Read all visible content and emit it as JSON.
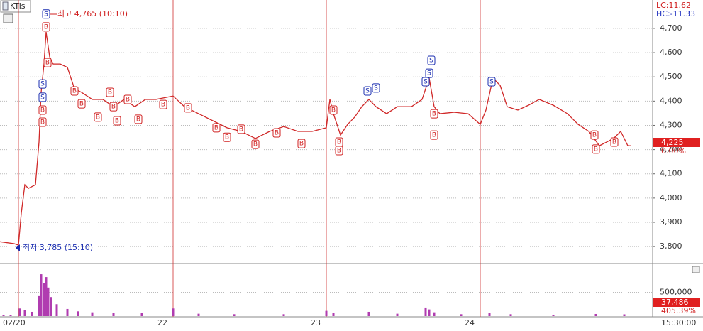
{
  "chart_data": {
    "type": "line",
    "symbol": "KTis",
    "lc": "LC:11.62",
    "hc": "HC:-11.33",
    "high_label": "최고 4,765 (10:10)",
    "low_label": "최저 3,785 (15:10)",
    "last_price": "4,225",
    "last_change": "0.00%",
    "last_volume": "37,486",
    "volume_ratio": "405.39%",
    "end_time": "15:30:00",
    "xlim": [
      0,
      920
    ],
    "xticks": [
      {
        "value": 26,
        "label": "02/20"
      },
      {
        "value": 244,
        "label": "22"
      },
      {
        "value": 460,
        "label": "23"
      },
      {
        "value": 677,
        "label": "24"
      }
    ],
    "ylim": [
      3733,
      4817
    ],
    "yticks": [
      {
        "value": 3800,
        "label": "3,800"
      },
      {
        "value": 3900,
        "label": "3,900"
      },
      {
        "value": 4000,
        "label": "4,000"
      },
      {
        "value": 4100,
        "label": "4,100"
      },
      {
        "value": 4200,
        "label": "4,200"
      },
      {
        "value": 4300,
        "label": "4,300"
      },
      {
        "value": 4400,
        "label": "4,400"
      },
      {
        "value": 4500,
        "label": "4,500"
      },
      {
        "value": 4600,
        "label": "4,600"
      },
      {
        "value": 4700,
        "label": "4,700"
      }
    ],
    "price": {
      "color": "#d02828",
      "x": [
        0,
        20,
        26,
        30,
        35,
        40,
        50,
        55,
        58,
        62,
        65,
        70,
        75,
        85,
        95,
        105,
        115,
        130,
        145,
        160,
        175,
        190,
        205,
        220,
        244,
        260,
        280,
        300,
        320,
        340,
        360,
        380,
        400,
        420,
        440,
        460,
        465,
        470,
        480,
        490,
        500,
        510,
        520,
        530,
        545,
        560,
        580,
        595,
        605,
        612,
        620,
        640,
        660,
        677,
        685,
        695,
        705,
        715,
        730,
        745,
        760,
        780,
        800,
        815,
        830,
        845,
        855,
        865,
        875,
        885,
        890
      ],
      "y": [
        3820,
        3812,
        3806,
        3938,
        4055,
        4040,
        4055,
        4231,
        4436,
        4553,
        4685,
        4583,
        4553,
        4553,
        4539,
        4451,
        4436,
        4407,
        4407,
        4377,
        4407,
        4377,
        4407,
        4407,
        4421,
        4377,
        4348,
        4319,
        4290,
        4275,
        4246,
        4275,
        4295,
        4275,
        4275,
        4290,
        4407,
        4348,
        4260,
        4304,
        4334,
        4377,
        4407,
        4377,
        4348,
        4377,
        4377,
        4407,
        4495,
        4377,
        4348,
        4354,
        4348,
        4304,
        4363,
        4495,
        4465,
        4377,
        4363,
        4383,
        4407,
        4383,
        4348,
        4304,
        4275,
        4216,
        4231,
        4246,
        4275,
        4216,
        4216
      ]
    },
    "volume": {
      "color": "#b03cb0",
      "ylim": [
        0,
        1090000
      ],
      "yticks": [
        {
          "value": 500000,
          "label": "500,000"
        }
      ],
      "x": [
        5,
        15,
        28,
        35,
        45,
        55,
        58,
        62,
        65,
        68,
        72,
        80,
        95,
        110,
        130,
        160,
        200,
        244,
        280,
        330,
        400,
        460,
        470,
        520,
        560,
        600,
        605,
        612,
        650,
        690,
        720,
        780,
        840,
        880
      ],
      "values": [
        30000,
        25000,
        160000,
        120000,
        90000,
        420000,
        880000,
        700000,
        820000,
        600000,
        400000,
        250000,
        150000,
        100000,
        80000,
        60000,
        60000,
        160000,
        50000,
        40000,
        40000,
        110000,
        60000,
        90000,
        50000,
        180000,
        140000,
        80000,
        40000,
        70000,
        40000,
        30000,
        45000,
        37486
      ]
    },
    "signals": {
      "kind": [
        "S",
        "B",
        "B",
        "S",
        "S",
        "B",
        "B",
        "B",
        "B",
        "B",
        "B",
        "B",
        "B",
        "B",
        "B",
        "B",
        "B",
        "B",
        "B",
        "B",
        "B",
        "B",
        "B",
        "B",
        "B",
        "B",
        "S",
        "S",
        "S",
        "S",
        "S",
        "B",
        "B",
        "S",
        "B",
        "B",
        "B"
      ],
      "x": [
        65,
        65,
        67,
        60,
        60,
        60,
        60,
        105,
        115,
        138,
        155,
        160,
        165,
        180,
        195,
        230,
        265,
        305,
        320,
        340,
        360,
        390,
        425,
        470,
        478,
        478,
        518,
        530,
        600,
        605,
        608,
        612,
        612,
        693,
        838,
        840,
        866
      ],
      "y": [
        4759,
        4706,
        4559,
        4471,
        4416,
        4363,
        4313,
        4442,
        4389,
        4334,
        4436,
        4377,
        4319,
        4407,
        4325,
        4386,
        4372,
        4290,
        4251,
        4284,
        4222,
        4269,
        4225,
        4363,
        4231,
        4196,
        4442,
        4454,
        4480,
        4515,
        4568,
        4348,
        4260,
        4480,
        4260,
        4202,
        4231
      ]
    }
  }
}
